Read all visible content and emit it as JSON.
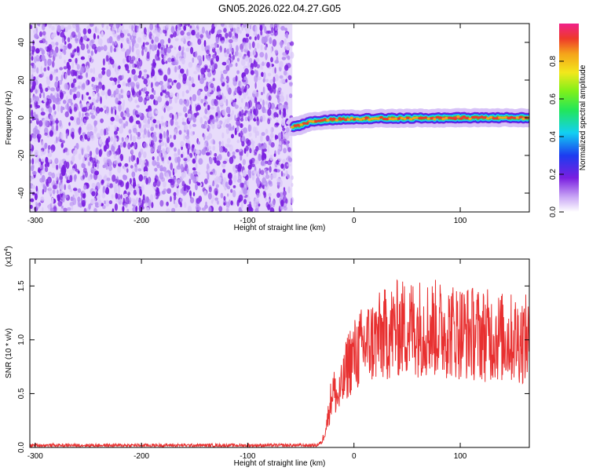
{
  "title": "GN05.2026.022.04.27.G05",
  "colors": {
    "snr_line": "#e83030",
    "spec_background": "#b68cf2",
    "spec_dots": "#7a1fe0",
    "track_core": "#e8463a",
    "track_halo": "#1fd0f0"
  },
  "chart_data": [
    {
      "type": "heatmap",
      "xlabel": "Height of straight line (km)",
      "ylabel": "Frequency (Hz)",
      "xlim": [
        -305,
        165
      ],
      "ylim": [
        -50,
        50
      ],
      "xticks": [
        -300,
        -200,
        -100,
        0,
        100
      ],
      "yticks": [
        -40,
        -20,
        0,
        20,
        40
      ],
      "colorbar": {
        "label": "Normalized spectral amplitude",
        "range": [
          0,
          1
        ],
        "ticks": [
          "0.0",
          "0.2",
          "0.4",
          "0.6",
          "0.8"
        ]
      },
      "noise_region_x": [
        -305,
        -58
      ],
      "track": {
        "x": [
          -58,
          -50,
          -45,
          -40,
          -30,
          -20,
          0,
          20,
          50,
          100,
          165
        ],
        "y": [
          -5,
          -4,
          -3,
          -2,
          -1.5,
          -1,
          -0.5,
          -0.4,
          -0.3,
          0,
          0
        ]
      },
      "grid": false
    },
    {
      "type": "line",
      "xlabel": "Height of straight line (km)",
      "ylabel": "SNR (10 * v/v)",
      "yscale_label": "(x10",
      "yscale_exp": "4",
      "yscale_suffix": ")",
      "xlim": [
        -305,
        165
      ],
      "ylim": [
        0,
        1.75
      ],
      "xticks": [
        -300,
        -200,
        -100,
        0,
        100
      ],
      "yticks": [
        "0.0",
        "0.5",
        "1.0",
        "1.5"
      ],
      "series": [
        {
          "x": [
            -305,
            -100,
            -60,
            -35,
            -30,
            -25,
            -20,
            -15,
            -10,
            -5,
            0,
            10,
            20,
            30,
            40,
            60,
            80,
            100,
            120,
            140,
            165
          ],
          "values": [
            0.02,
            0.02,
            0.02,
            0.02,
            0.05,
            0.25,
            0.55,
            0.45,
            0.6,
            0.8,
            0.85,
            0.95,
            1.0,
            1.05,
            1.1,
            1.12,
            1.1,
            1.08,
            1.05,
            1.02,
            1.0
          ]
        }
      ],
      "grid": false
    }
  ]
}
